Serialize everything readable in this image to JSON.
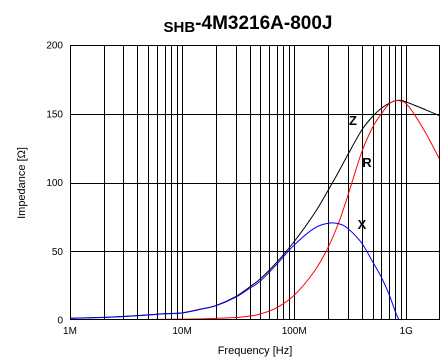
{
  "chart_data": {
    "type": "line",
    "title": "SHB-4M3216A-800J",
    "xlabel": "Frequency [Hz]",
    "ylabel": "Impedance [Ω]",
    "xscale": "log",
    "xlim": [
      1000000.0,
      2000000000.0
    ],
    "ylim": [
      0,
      200
    ],
    "grid": true,
    "x_ticks": [
      1000000.0,
      10000000.0,
      100000000.0,
      1000000000.0
    ],
    "x_tick_labels": [
      "1M",
      "10M",
      "100M",
      "1G"
    ],
    "y_ticks": [
      0,
      50,
      100,
      150,
      200
    ],
    "y_tick_labels": [
      "0",
      "50",
      "100",
      "150",
      "200"
    ],
    "series": [
      {
        "name": "Z",
        "color": "#000000",
        "x": [
          1000000.0,
          2000000.0,
          3000000.0,
          5000000.0,
          7000000.0,
          10000000.0,
          15000000.0,
          20000000.0,
          30000000.0,
          40000000.0,
          50000000.0,
          70000000.0,
          100000000.0,
          150000000.0,
          200000000.0,
          250000000.0,
          300000000.0,
          400000000.0,
          500000000.0,
          600000000.0,
          700000000.0,
          800000000.0,
          900000000.0,
          1000000000.0,
          1200000000.0,
          1500000000.0,
          2000000000.0
        ],
        "values": [
          1.3,
          1.9,
          2.6,
          3.7,
          4.6,
          5.2,
          8.1,
          10.5,
          17,
          24,
          30,
          42,
          57,
          77,
          94,
          108,
          120,
          138,
          148,
          154,
          157.5,
          159.5,
          159.7,
          158.6,
          156,
          152.8,
          148.4
        ]
      },
      {
        "name": "R",
        "color": "#ff0000",
        "x": [
          1000000.0,
          2000000.0,
          3000000.0,
          5000000.0,
          7000000.0,
          10000000.0,
          15000000.0,
          20000000.0,
          30000000.0,
          40000000.0,
          50000000.0,
          70000000.0,
          100000000.0,
          150000000.0,
          200000000.0,
          250000000.0,
          300000000.0,
          400000000.0,
          500000000.0,
          600000000.0,
          700000000.0,
          800000000.0,
          900000000.0,
          1000000000.0,
          1200000000.0,
          1500000000.0,
          2000000000.0
        ],
        "values": [
          0.3,
          0.3,
          0.3,
          0.4,
          0.5,
          0.6,
          0.8,
          1.2,
          1.8,
          2.8,
          4.4,
          9,
          18,
          35,
          52.5,
          71,
          90,
          122,
          140,
          150,
          157,
          159.5,
          159.2,
          157.3,
          148.7,
          135.6,
          116.4
        ]
      },
      {
        "name": "X",
        "color": "#0000ff",
        "x": [
          1000000.0,
          2000000.0,
          3000000.0,
          5000000.0,
          7000000.0,
          10000000.0,
          15000000.0,
          20000000.0,
          30000000.0,
          40000000.0,
          50000000.0,
          70000000.0,
          100000000.0,
          150000000.0,
          200000000.0,
          250000000.0,
          300000000.0,
          400000000.0,
          500000000.0,
          600000000.0,
          700000000.0,
          800000000.0,
          860000000.0
        ],
        "values": [
          1.2,
          1.8,
          2.5,
          3.6,
          4.5,
          5.1,
          8,
          10.3,
          16.5,
          23,
          28.4,
          40.5,
          54.5,
          66.5,
          70.3,
          70,
          66.6,
          56,
          42.5,
          31,
          19,
          6,
          0
        ]
      }
    ]
  }
}
